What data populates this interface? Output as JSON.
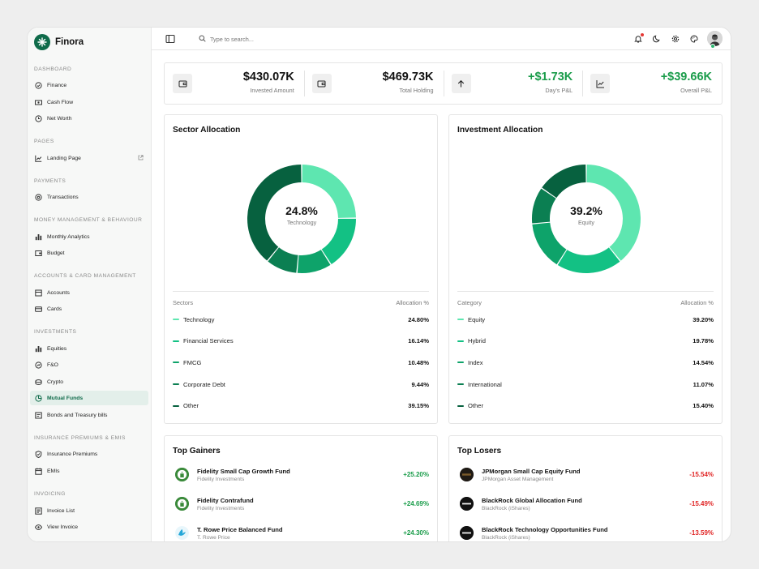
{
  "app": {
    "name": "Finora"
  },
  "colors": {
    "brand": "#0f6b4a",
    "positive": "#1a9c4a",
    "negative": "#e02424"
  },
  "sidebar": {
    "sections": [
      {
        "title": "DASHBOARD",
        "items": [
          {
            "label": "Finance",
            "icon": "dashboard-icon"
          },
          {
            "label": "Cash Flow",
            "icon": "cash-icon"
          },
          {
            "label": "Net Worth",
            "icon": "clock-icon"
          }
        ]
      },
      {
        "title": "PAGES",
        "items": [
          {
            "label": "Landing Page",
            "icon": "chart-icon"
          }
        ]
      },
      {
        "title": "PAYMENTS",
        "items": [
          {
            "label": "Transactions",
            "icon": "transactions-icon"
          }
        ]
      },
      {
        "title": "MONEY MANAGEMENT & BEHAVIOUR",
        "items": [
          {
            "label": "Monthly Analytics",
            "icon": "bar-chart-icon"
          },
          {
            "label": "Budget",
            "icon": "wallet-icon"
          }
        ]
      },
      {
        "title": "ACCOUNTS & CARD MANAGEMENT",
        "items": [
          {
            "label": "Accounts",
            "icon": "bank-icon"
          },
          {
            "label": "Cards",
            "icon": "card-icon"
          }
        ]
      },
      {
        "title": "INVESTMENTS",
        "items": [
          {
            "label": "Equities",
            "icon": "bar-chart-icon"
          },
          {
            "label": "F&O",
            "icon": "options-icon"
          },
          {
            "label": "Crypto",
            "icon": "coins-icon"
          },
          {
            "label": "Mutual Funds",
            "icon": "funds-icon"
          },
          {
            "label": "Bonds and Treasury bills",
            "icon": "bond-icon"
          }
        ]
      },
      {
        "title": "INSURANCE PREMIUMS & EMIS",
        "items": [
          {
            "label": "Insurance Premiums",
            "icon": "shield-icon"
          },
          {
            "label": "EMIs",
            "icon": "calendar-icon"
          }
        ]
      },
      {
        "title": "INVOICING",
        "items": [
          {
            "label": "Invoice List",
            "icon": "list-icon"
          },
          {
            "label": "View Invoice",
            "icon": "eye-icon"
          }
        ]
      }
    ]
  },
  "topbar": {
    "search_placeholder": "Type to search..."
  },
  "stats": [
    {
      "value": "$430.07K",
      "label": "Invested Amount",
      "icon": "wallet-icon",
      "positive": false
    },
    {
      "value": "$469.73K",
      "label": "Total Holding",
      "icon": "wallet-icon",
      "positive": false
    },
    {
      "value": "+$1.73K",
      "label": "Day's P&L",
      "icon": "arrow-up-icon",
      "positive": true
    },
    {
      "value": "+$39.66K",
      "label": "Overall P&L",
      "icon": "trend-icon",
      "positive": true
    }
  ],
  "sector": {
    "title": "Sector Allocation",
    "center_value": "24.8%",
    "center_label": "Technology",
    "col_left": "Sectors",
    "col_right": "Allocation %",
    "rows": [
      {
        "name": "Technology",
        "value": "24.80%",
        "pct": 24.8,
        "color": "#5ee6b0"
      },
      {
        "name": "Financial Services",
        "value": "16.14%",
        "pct": 16.14,
        "color": "#13c184"
      },
      {
        "name": "FMCG",
        "value": "10.48%",
        "pct": 10.48,
        "color": "#0ea36a"
      },
      {
        "name": "Corporate Debt",
        "value": "9.44%",
        "pct": 9.44,
        "color": "#0b7f52"
      },
      {
        "name": "Other",
        "value": "39.15%",
        "pct": 39.15,
        "color": "#07613f"
      }
    ]
  },
  "investment": {
    "title": "Investment Allocation",
    "center_value": "39.2%",
    "center_label": "Equity",
    "col_left": "Category",
    "col_right": "Allocation %",
    "rows": [
      {
        "name": "Equity",
        "value": "39.20%",
        "pct": 39.2,
        "color": "#5ee6b0"
      },
      {
        "name": "Hybrid",
        "value": "19.78%",
        "pct": 19.78,
        "color": "#13c184"
      },
      {
        "name": "Index",
        "value": "14.54%",
        "pct": 14.54,
        "color": "#0ea36a"
      },
      {
        "name": "International",
        "value": "11.07%",
        "pct": 11.07,
        "color": "#0b7f52"
      },
      {
        "name": "Other",
        "value": "15.40%",
        "pct": 15.4,
        "color": "#07613f"
      }
    ]
  },
  "gainers": {
    "title": "Top Gainers",
    "items": [
      {
        "name": "Fidelity Small Cap Growth Fund",
        "sub": "Fidelity Investments",
        "change": "+25.20%",
        "logo": "fidelity-logo"
      },
      {
        "name": "Fidelity Contrafund",
        "sub": "Fidelity Investments",
        "change": "+24.69%",
        "logo": "fidelity-logo"
      },
      {
        "name": "T. Rowe Price Balanced Fund",
        "sub": "T. Rowe Price",
        "change": "+24.30%",
        "logo": "trowe-logo"
      }
    ]
  },
  "losers": {
    "title": "Top Losers",
    "items": [
      {
        "name": "JPMorgan Small Cap Equity Fund",
        "sub": "JPMorgan Asset Management",
        "change": "-15.54%",
        "logo": "jpmorgan-logo"
      },
      {
        "name": "BlackRock Global Allocation Fund",
        "sub": "BlackRock (iShares)",
        "change": "-15.49%",
        "logo": "blackrock-logo"
      },
      {
        "name": "BlackRock Technology Opportunities Fund",
        "sub": "BlackRock (iShares)",
        "change": "-13.59%",
        "logo": "blackrock-logo"
      }
    ]
  }
}
